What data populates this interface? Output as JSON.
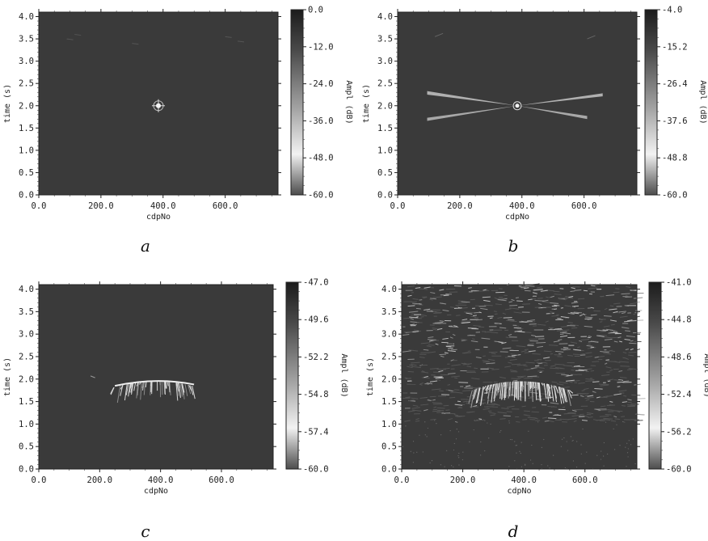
{
  "colors": {
    "background": "#3a3a3a",
    "cb_dark": "#1e1e1e",
    "cb_light": "#f0f0f0",
    "axis": "#222222"
  },
  "chart_data": [
    {
      "type": "heatmap",
      "panel_label": "a",
      "xlabel": "cdpNo",
      "ylabel": "time (s)",
      "xlim": [
        0,
        770
      ],
      "ylim": [
        0,
        4.1
      ],
      "x_ticks": [
        "0.0",
        "200.0",
        "400.0",
        "600.0"
      ],
      "y_ticks": [
        "0.0",
        "0.5",
        "1.0",
        "1.5",
        "2.0",
        "2.5",
        "3.0",
        "3.5",
        "4.0"
      ],
      "colorbar_label": "Ampl (dB)",
      "colorbar_ticks": [
        "0.0",
        "-12.0",
        "-24.0",
        "-36.0",
        "-48.0",
        "-60.0"
      ],
      "colorbar_range": [
        -60.0,
        0.0
      ],
      "feature": "point",
      "center": [
        385,
        2.0
      ]
    },
    {
      "type": "heatmap",
      "panel_label": "b",
      "xlabel": "cdpNo",
      "ylabel": "time (s)",
      "xlim": [
        0,
        770
      ],
      "ylim": [
        0,
        4.1
      ],
      "x_ticks": [
        "0.0",
        "200.0",
        "400.0",
        "600.0"
      ],
      "y_ticks": [
        "0.0",
        "0.5",
        "1.0",
        "1.5",
        "2.0",
        "2.5",
        "3.0",
        "3.5",
        "4.0"
      ],
      "colorbar_label": "Ampl (dB)",
      "colorbar_ticks": [
        "-4.0",
        "-15.2",
        "-26.4",
        "-37.6",
        "-48.8",
        "-60.0"
      ],
      "colorbar_range": [
        -60.0,
        -4.0
      ],
      "feature": "cross",
      "center": [
        385,
        2.0
      ]
    },
    {
      "type": "heatmap",
      "panel_label": "c",
      "xlabel": "cdpNo",
      "ylabel": "time (s)",
      "xlim": [
        0,
        770
      ],
      "ylim": [
        0,
        4.1
      ],
      "x_ticks": [
        "0.0",
        "200.0",
        "400.0",
        "600.0"
      ],
      "y_ticks": [
        "0.0",
        "0.5",
        "1.0",
        "1.5",
        "2.0",
        "2.5",
        "3.0",
        "3.5",
        "4.0"
      ],
      "colorbar_label": "Ampl (dB)",
      "colorbar_ticks": [
        "-47.0",
        "-49.6",
        "-52.2",
        "-54.8",
        "-57.4",
        "-60.0"
      ],
      "colorbar_range": [
        -60.0,
        -47.0
      ],
      "feature": "arc",
      "center": [
        385,
        2.0
      ]
    },
    {
      "type": "heatmap",
      "panel_label": "d",
      "xlabel": "cdpNo",
      "ylabel": "time (s)",
      "xlim": [
        0,
        770
      ],
      "ylim": [
        0,
        4.1
      ],
      "x_ticks": [
        "0.0",
        "200.0",
        "400.0",
        "600.0"
      ],
      "y_ticks": [
        "0.0",
        "0.5",
        "1.0",
        "1.5",
        "2.0",
        "2.5",
        "3.0",
        "3.5",
        "4.0"
      ],
      "colorbar_label": "Ampl (dB)",
      "colorbar_ticks": [
        "-41.0",
        "-44.8",
        "-48.6",
        "-52.4",
        "-56.2",
        "-60.0"
      ],
      "colorbar_range": [
        -60.0,
        -41.0
      ],
      "feature": "noise",
      "center": [
        385,
        2.0
      ]
    }
  ]
}
